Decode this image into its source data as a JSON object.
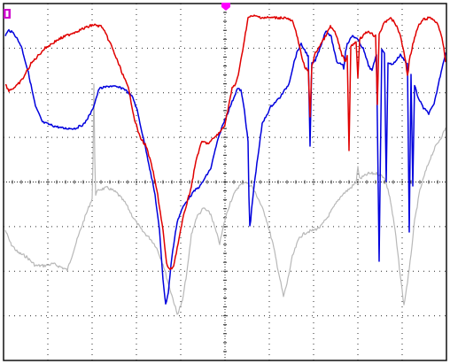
{
  "screen": {
    "background": "#ffffff",
    "frame_color": "#111111",
    "grid_color": "#2a2a2a"
  },
  "grid": {
    "h_divisions": 10,
    "v_divisions": 8,
    "minor_ticks_per_division": 5
  },
  "markers": {
    "channel_marker": {
      "color": "#cc00cc",
      "icon": "channel-1-ground-marker"
    },
    "trigger_marker": {
      "color": "#ff00ff",
      "icon": "trigger-position-marker"
    }
  },
  "traces": [
    {
      "id": "red",
      "color": "#e00000"
    },
    {
      "id": "blue",
      "color": "#0000dd"
    },
    {
      "id": "gray",
      "color": "#b8b8b8"
    }
  ]
}
